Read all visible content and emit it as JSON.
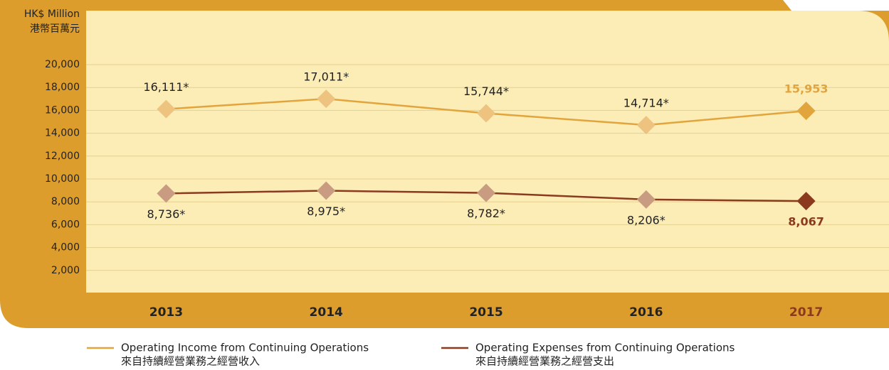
{
  "chart_data": {
    "type": "line",
    "y_label": "HK$ Million",
    "y_label_zh": "港幣百萬元",
    "categories": [
      "2013",
      "2014",
      "2015",
      "2016",
      "2017"
    ],
    "series": [
      {
        "name": "Operating Income from Continuing Operations",
        "name_zh": "來自持續經營業務之經營收入",
        "color": "#E2A43C",
        "values": [
          16111,
          17011,
          15744,
          14714,
          15953
        ],
        "value_labels": [
          "16,111*",
          "17,011*",
          "15,744*",
          "14,714*",
          "15,953"
        ]
      },
      {
        "name": "Operating Expenses from Continuing Operations",
        "name_zh": "來自持續經營業務之經營支出",
        "color": "#8B3A1E",
        "values": [
          8736,
          8975,
          8782,
          8206,
          8067
        ],
        "value_labels": [
          "8,736*",
          "8,975*",
          "8,782*",
          "8,206*",
          "8,067"
        ]
      }
    ],
    "ylim": [
      0,
      20000
    ],
    "yticks": [
      {
        "value": 2000,
        "label": "2,000"
      },
      {
        "value": 4000,
        "label": "4,000"
      },
      {
        "value": 6000,
        "label": "6,000"
      },
      {
        "value": 8000,
        "label": "8,000"
      },
      {
        "value": 10000,
        "label": "10,000"
      },
      {
        "value": 12000,
        "label": "12,000"
      },
      {
        "value": 14000,
        "label": "14,000"
      },
      {
        "value": 16000,
        "label": "16,000"
      },
      {
        "value": 18000,
        "label": "18,000"
      },
      {
        "value": 20000,
        "label": "20,000"
      }
    ],
    "grid": true
  }
}
